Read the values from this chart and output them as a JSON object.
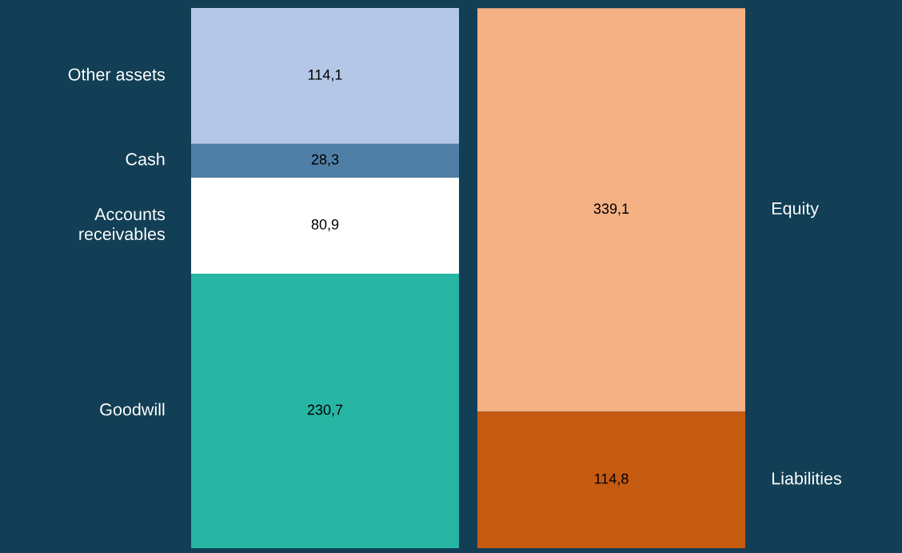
{
  "chart_data": {
    "type": "bar",
    "stacked": true,
    "categories": [
      null,
      null
    ],
    "legend": false,
    "series": [
      {
        "name": "Goodwill",
        "color": "#27b6a4",
        "values": [
          230.7,
          null
        ],
        "value_labels": [
          "230,7",
          null
        ]
      },
      {
        "name": "Accounts\nreceivables",
        "color": "#ffffff",
        "values": [
          80.9,
          null
        ],
        "value_labels": [
          "80,9",
          null
        ]
      },
      {
        "name": "Cash",
        "color": "#4f7fa6",
        "values": [
          28.3,
          null
        ],
        "value_labels": [
          "28,3",
          null
        ]
      },
      {
        "name": "Other assets",
        "color": "#b4c7e7",
        "values": [
          114.1,
          null
        ],
        "value_labels": [
          "114,1",
          null
        ]
      },
      {
        "name": "Liabilities",
        "color": "#c55a11",
        "values": [
          null,
          114.8
        ],
        "value_labels": [
          null,
          "114,8"
        ]
      },
      {
        "name": "Equity",
        "color": "#f4b183",
        "values": [
          null,
          339.1
        ],
        "value_labels": [
          null,
          "339,1"
        ]
      }
    ]
  }
}
